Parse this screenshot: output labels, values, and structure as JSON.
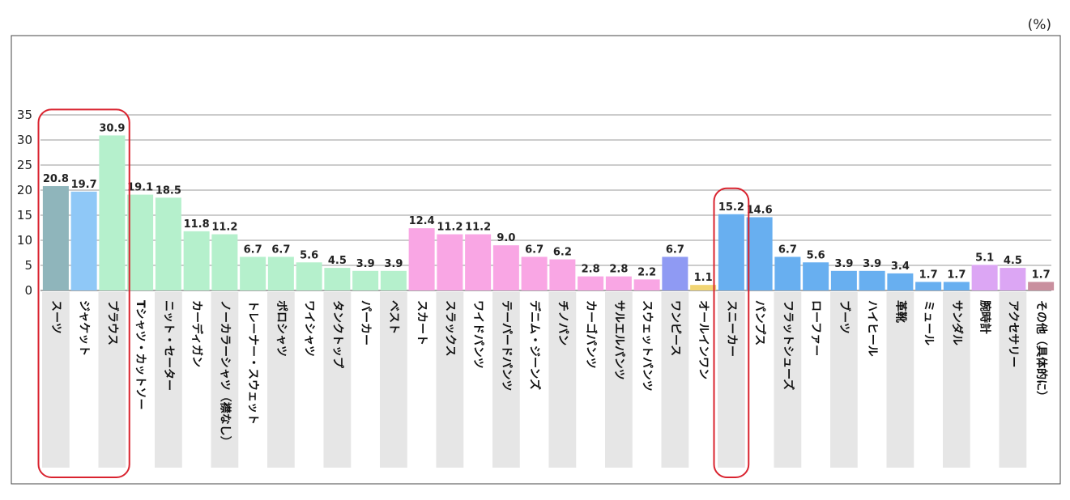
{
  "chart_data": {
    "type": "bar",
    "title": "",
    "unit_label": "(%)",
    "ylabel": "",
    "xlabel": "",
    "ylim": [
      0,
      35
    ],
    "yticks": [
      0,
      5,
      10,
      15,
      20,
      25,
      30,
      35
    ],
    "grid": true,
    "categories": [
      "スーツ",
      "ジャケット",
      "ブラウス",
      "Tシャツ・カットソー",
      "ニット・セーター",
      "カーディガン",
      "ノーカラーシャツ（襟なし）",
      "トレーナー・スウェット",
      "ポロシャツ",
      "ワイシャツ",
      "タンクトップ",
      "パーカー",
      "ベスト",
      "スカート",
      "スラックス",
      "ワイドパンツ",
      "テーパードパンツ",
      "デニム・ジーンズ",
      "チノパン",
      "カーゴパンツ",
      "サルエルパンツ",
      "スウェットパンツ",
      "ワンピース",
      "オールインワン",
      "スニーカー",
      "パンプス",
      "フラットシューズ",
      "ローファー",
      "ブーツ",
      "ハイヒール",
      "革靴",
      "ミュール",
      "サンダル",
      "腕時計",
      "アクセサリー",
      "その他（具体的に）"
    ],
    "values": [
      20.8,
      19.7,
      30.9,
      19.1,
      18.5,
      11.8,
      11.2,
      6.7,
      6.7,
      5.6,
      4.5,
      3.9,
      3.9,
      12.4,
      11.2,
      11.2,
      9.0,
      6.7,
      6.2,
      2.8,
      2.8,
      2.2,
      6.7,
      1.1,
      15.2,
      14.6,
      6.7,
      5.6,
      3.9,
      3.9,
      3.4,
      1.7,
      1.7,
      5.1,
      4.5,
      1.7
    ],
    "value_labels": [
      "20.8",
      "19.7",
      "30.9",
      "19.1",
      "18.5",
      "11.8",
      "11.2",
      "6.7",
      "6.7",
      "5.6",
      "4.5",
      "3.9",
      "3.9",
      "12.4",
      "11.2",
      "11.2",
      "9.0",
      "6.7",
      "6.2",
      "2.8",
      "2.8",
      "2.2",
      "6.7",
      "1.1",
      "15.2",
      "14.6",
      "6.7",
      "5.6",
      "3.9",
      "3.9",
      "3.4",
      "1.7",
      "1.7",
      "5.1",
      "4.5",
      "1.7"
    ],
    "bar_colors": [
      "#8fb5bb",
      "#8fc8f7",
      "#b5f0cc",
      "#b5f0cc",
      "#b5f0cc",
      "#b5f0cc",
      "#b5f0cc",
      "#b5f0cc",
      "#b5f0cc",
      "#b5f0cc",
      "#b5f0cc",
      "#b5f0cc",
      "#b5f0cc",
      "#f9a6e4",
      "#f9a6e4",
      "#f9a6e4",
      "#f9a6e4",
      "#f9a6e4",
      "#f9a6e4",
      "#f9a6e4",
      "#f9a6e4",
      "#f9a6e4",
      "#8f9af3",
      "#f1d574",
      "#68aff0",
      "#68aff0",
      "#68aff0",
      "#68aff0",
      "#68aff0",
      "#68aff0",
      "#68aff0",
      "#68aff0",
      "#68aff0",
      "#dca6f4",
      "#dca6f4",
      "#c98f9e"
    ],
    "highlight_groups": [
      {
        "name": "suit-jacket-blouse",
        "from": 0,
        "to": 2
      },
      {
        "name": "sneaker",
        "from": 24,
        "to": 24
      }
    ],
    "highlight_color": "#d9232f"
  }
}
